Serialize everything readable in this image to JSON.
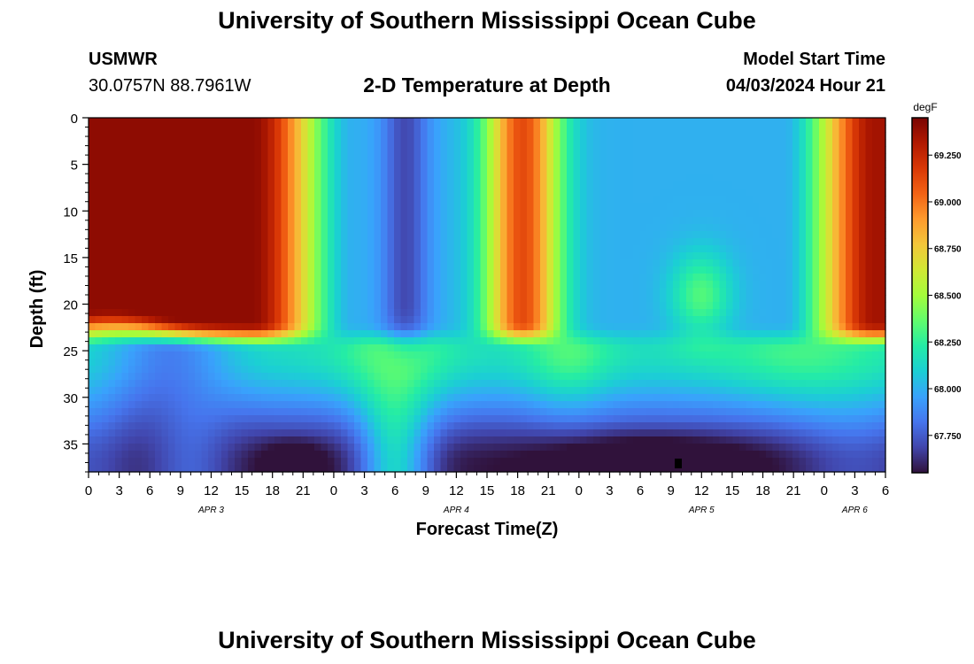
{
  "header": {
    "title": "University of Southern Mississippi Ocean Cube",
    "station": "USMWR",
    "coords": "30.0757N  88.7961W",
    "chart_title": "2-D Temperature at Depth",
    "model_label": "Model Start Time",
    "model_time": "04/03/2024 Hour 21"
  },
  "footer": {
    "title": "University of Southern Mississippi Ocean Cube"
  },
  "chart_data": {
    "type": "heatmap",
    "title": "2-D Temperature at Depth",
    "xlabel": "Forecast Time(Z)",
    "ylabel": "Depth (ft)",
    "x_tick_labels": [
      "0",
      "3",
      "6",
      "9",
      "12",
      "15",
      "18",
      "21",
      "0",
      "3",
      "6",
      "9",
      "12",
      "15",
      "18",
      "21",
      "0",
      "3",
      "6",
      "9",
      "12",
      "15",
      "18",
      "21",
      "0",
      "3",
      "6"
    ],
    "x_range_hours": [
      0,
      78
    ],
    "date_labels": [
      {
        "label": "APR 3",
        "hour": 12
      },
      {
        "label": "APR 4",
        "hour": 36
      },
      {
        "label": "APR 5",
        "hour": 60
      },
      {
        "label": "APR 6",
        "hour": 75
      }
    ],
    "y_ticks": [
      0,
      5,
      10,
      15,
      20,
      25,
      30,
      35
    ],
    "y_range_ft": [
      0,
      38
    ],
    "colorbar": {
      "unit": "degF",
      "range": [
        67.55,
        69.45
      ],
      "ticks": [
        69.25,
        69.0,
        68.75,
        68.5,
        68.25,
        68.0,
        67.75
      ],
      "tick_labels": [
        "69.250",
        "69.000",
        "68.750",
        "68.500",
        "68.250",
        "68.000",
        "67.750"
      ],
      "colors": [
        "#30123b",
        "#4145ab",
        "#4675ed",
        "#39a2fc",
        "#1bcfd4",
        "#24eca6",
        "#61fc6c",
        "#a4fc3b",
        "#d1e834",
        "#f3c63a",
        "#fe9b2d",
        "#f36315",
        "#d93806",
        "#b11901",
        "#7a0402"
      ]
    },
    "features": [
      {
        "region": "Apr 3 00-23Z, 0-22 ft",
        "temp_f": 69.4
      },
      {
        "region": "Apr 3 05Z, 24-38 ft",
        "temp_f": 67.85
      },
      {
        "region": "Apr 3 18-22Z, 34-38 ft",
        "temp_f": 67.6
      },
      {
        "region": "Apr 4 04Z, 0-20 ft",
        "temp_f": 68.05
      },
      {
        "region": "Apr 4 04-05Z, 25-35 ft",
        "temp_f": 68.3
      },
      {
        "region": "Apr 4 19-21Z, 0-22 ft",
        "temp_f": 69.1
      },
      {
        "region": "Apr 5 00-18Z, 0-35 ft",
        "temp_f": 67.95
      },
      {
        "region": "Apr 5 00-16Z, 34-38 ft",
        "temp_f": 67.58
      },
      {
        "region": "Apr 5 12Z, 19 ft",
        "temp_f": 68.3
      },
      {
        "region": "Apr 6 03-06Z, 0-10 ft",
        "temp_f": 69.3
      }
    ]
  }
}
